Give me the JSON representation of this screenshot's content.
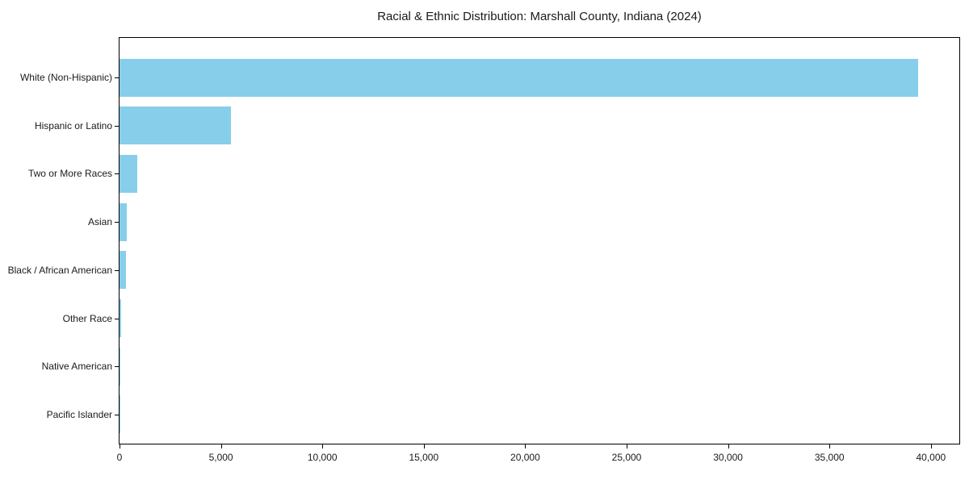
{
  "chart_data": {
    "type": "bar",
    "orientation": "horizontal",
    "title": "Racial & Ethnic Distribution: Marshall County, Indiana (2024)",
    "categories": [
      "White (Non-Hispanic)",
      "Hispanic or Latino",
      "Two or More Races",
      "Asian",
      "Black / African American",
      "Other Race",
      "Native American",
      "Pacific Islander"
    ],
    "values": [
      39350,
      5500,
      870,
      350,
      300,
      90,
      40,
      15
    ],
    "xlabel": "",
    "ylabel": "",
    "xlim": [
      0,
      41400
    ],
    "x_tick_values": [
      0,
      5000,
      10000,
      15000,
      20000,
      25000,
      30000,
      35000,
      40000
    ],
    "x_tick_labels": [
      "0",
      "5,000",
      "10,000",
      "15,000",
      "20,000",
      "25,000",
      "30,000",
      "35,000",
      "40,000"
    ],
    "bar_color": "#87CEEB",
    "frame_color": "#000000",
    "background": "#FFFFFF",
    "grid": false,
    "legend": null
  }
}
